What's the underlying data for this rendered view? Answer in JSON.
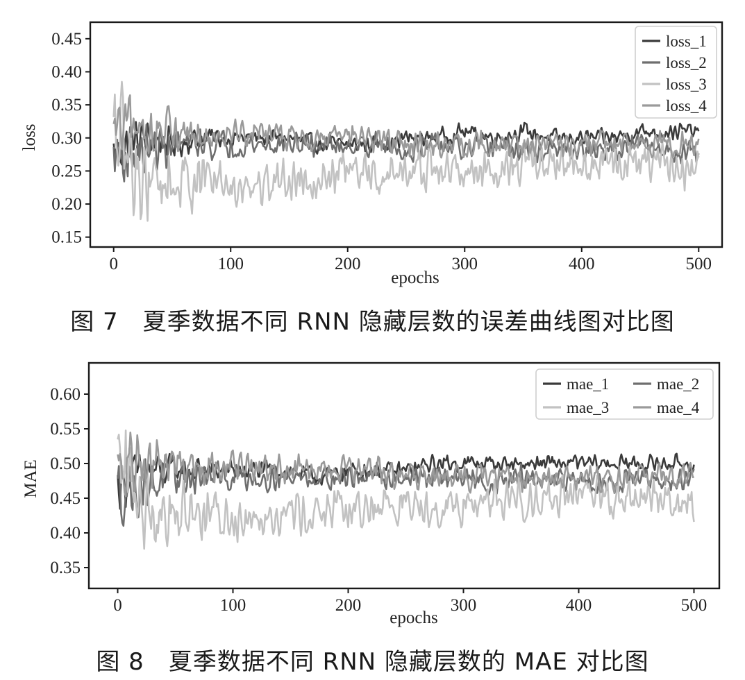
{
  "chart_data": [
    {
      "type": "line",
      "xlabel": "epochs",
      "ylabel": "loss",
      "xlim": [
        -20,
        520
      ],
      "ylim": [
        0.135,
        0.475
      ],
      "xticks": [
        0,
        100,
        200,
        300,
        400,
        500
      ],
      "yticks": [
        0.15,
        0.2,
        0.25,
        0.3,
        0.35,
        0.4,
        0.45
      ],
      "ytick_labels": [
        "0.15",
        "0.20",
        "0.25",
        "0.30",
        "0.35",
        "0.40",
        "0.45"
      ],
      "grid": false,
      "legend": "top-right",
      "series": [
        {
          "name": "loss_1",
          "color": "#3a3a3a",
          "x": [
            0,
            25,
            50,
            75,
            100,
            125,
            150,
            175,
            200,
            225,
            250,
            275,
            300,
            325,
            350,
            375,
            400,
            425,
            450,
            475,
            500
          ],
          "values": [
            0.28,
            0.3,
            0.29,
            0.3,
            0.3,
            0.3,
            0.3,
            0.29,
            0.29,
            0.29,
            0.3,
            0.3,
            0.31,
            0.3,
            0.31,
            0.3,
            0.3,
            0.3,
            0.31,
            0.31,
            0.31
          ]
        },
        {
          "name": "loss_2",
          "color": "#6e6e6e",
          "x": [
            0,
            25,
            50,
            75,
            100,
            125,
            150,
            175,
            200,
            225,
            250,
            275,
            300,
            325,
            350,
            375,
            400,
            425,
            450,
            475,
            500
          ],
          "values": [
            0.27,
            0.28,
            0.29,
            0.29,
            0.29,
            0.29,
            0.29,
            0.29,
            0.29,
            0.29,
            0.28,
            0.29,
            0.28,
            0.29,
            0.28,
            0.28,
            0.28,
            0.28,
            0.29,
            0.28,
            0.28
          ]
        },
        {
          "name": "loss_3",
          "color": "#c2c2c2",
          "x": [
            0,
            25,
            50,
            75,
            100,
            125,
            150,
            175,
            200,
            225,
            250,
            275,
            300,
            325,
            350,
            375,
            400,
            425,
            450,
            475,
            500
          ],
          "values": [
            0.3,
            0.24,
            0.23,
            0.24,
            0.23,
            0.23,
            0.24,
            0.24,
            0.25,
            0.24,
            0.25,
            0.25,
            0.25,
            0.25,
            0.26,
            0.26,
            0.26,
            0.26,
            0.26,
            0.26,
            0.25
          ]
        },
        {
          "name": "loss_4",
          "color": "#9a9a9a",
          "x": [
            0,
            25,
            50,
            75,
            100,
            125,
            150,
            175,
            200,
            225,
            250,
            275,
            300,
            325,
            350,
            375,
            400,
            425,
            450,
            475,
            500
          ],
          "values": [
            0.3,
            0.31,
            0.31,
            0.31,
            0.31,
            0.31,
            0.3,
            0.3,
            0.3,
            0.3,
            0.29,
            0.29,
            0.29,
            0.29,
            0.29,
            0.29,
            0.29,
            0.29,
            0.29,
            0.29,
            0.29
          ]
        }
      ]
    },
    {
      "type": "line",
      "xlabel": "epochs",
      "ylabel": "MAE",
      "xlim": [
        -25,
        522
      ],
      "ylim": [
        0.32,
        0.645
      ],
      "xticks": [
        0,
        100,
        200,
        300,
        400,
        500
      ],
      "yticks": [
        0.35,
        0.4,
        0.45,
        0.5,
        0.55,
        0.6
      ],
      "ytick_labels": [
        "0.35",
        "0.40",
        "0.45",
        "0.50",
        "0.55",
        "0.60"
      ],
      "grid": false,
      "legend": "top-right",
      "series": [
        {
          "name": "mae_1",
          "color": "#3a3a3a",
          "x": [
            0,
            25,
            50,
            75,
            100,
            125,
            150,
            175,
            200,
            225,
            250,
            275,
            300,
            325,
            350,
            375,
            400,
            425,
            450,
            475,
            500
          ],
          "values": [
            0.47,
            0.49,
            0.49,
            0.49,
            0.49,
            0.49,
            0.49,
            0.48,
            0.49,
            0.49,
            0.49,
            0.5,
            0.5,
            0.5,
            0.5,
            0.5,
            0.5,
            0.5,
            0.5,
            0.5,
            0.5
          ]
        },
        {
          "name": "mae_2",
          "color": "#6e6e6e",
          "x": [
            0,
            25,
            50,
            75,
            100,
            125,
            150,
            175,
            200,
            225,
            250,
            275,
            300,
            325,
            350,
            375,
            400,
            425,
            450,
            475,
            500
          ],
          "values": [
            0.46,
            0.47,
            0.48,
            0.48,
            0.48,
            0.48,
            0.48,
            0.48,
            0.48,
            0.48,
            0.48,
            0.48,
            0.48,
            0.47,
            0.48,
            0.47,
            0.48,
            0.47,
            0.48,
            0.47,
            0.48
          ]
        },
        {
          "name": "mae_3",
          "color": "#c2c2c2",
          "x": [
            0,
            25,
            50,
            75,
            100,
            125,
            150,
            175,
            200,
            225,
            250,
            275,
            300,
            325,
            350,
            375,
            400,
            425,
            450,
            475,
            500
          ],
          "values": [
            0.5,
            0.44,
            0.43,
            0.43,
            0.42,
            0.43,
            0.43,
            0.43,
            0.43,
            0.44,
            0.44,
            0.44,
            0.44,
            0.45,
            0.45,
            0.45,
            0.45,
            0.45,
            0.45,
            0.45,
            0.44
          ]
        },
        {
          "name": "mae_4",
          "color": "#9a9a9a",
          "x": [
            0,
            25,
            50,
            75,
            100,
            125,
            150,
            175,
            200,
            225,
            250,
            275,
            300,
            325,
            350,
            375,
            400,
            425,
            450,
            475,
            500
          ],
          "values": [
            0.49,
            0.5,
            0.5,
            0.5,
            0.5,
            0.49,
            0.49,
            0.49,
            0.49,
            0.49,
            0.48,
            0.48,
            0.48,
            0.48,
            0.48,
            0.48,
            0.48,
            0.48,
            0.48,
            0.48,
            0.48
          ]
        }
      ]
    }
  ],
  "captions": {
    "figure_7": "图 7　夏季数据不同 RNN 隐藏层数的误差曲线图对比图",
    "figure_8": "图 8　夏季数据不同 RNN 隐藏层数的 MAE 对比图"
  }
}
